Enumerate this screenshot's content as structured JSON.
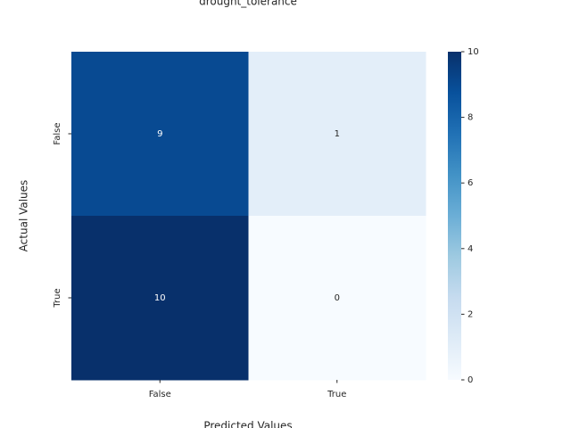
{
  "chart_data": {
    "type": "heatmap",
    "title": "drought_tolerance",
    "x_label": "Predicted Values",
    "y_label": "Actual Values",
    "x_categories": [
      "False",
      "True"
    ],
    "y_categories": [
      "False",
      "True"
    ],
    "values": [
      [
        9,
        1
      ],
      [
        10,
        0
      ]
    ],
    "colormap": "Blues",
    "vlim": [
      0,
      10
    ],
    "colorbar_ticks": [
      0,
      2,
      4,
      6,
      8,
      10
    ]
  }
}
